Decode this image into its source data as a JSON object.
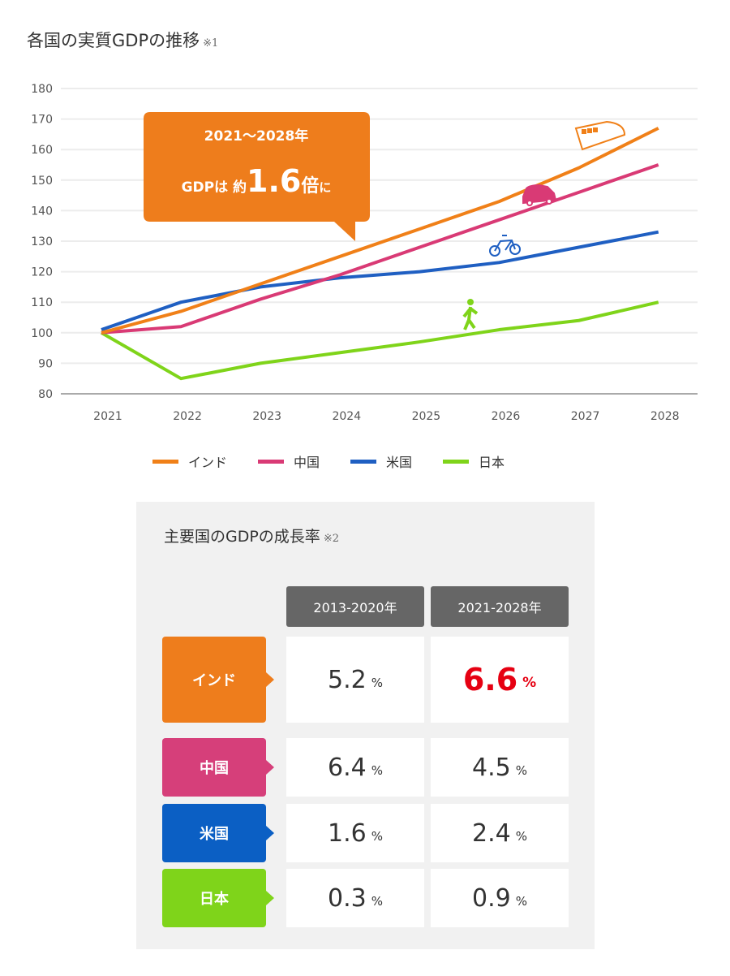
{
  "header": {
    "title": "各国の実質GDPの推移",
    "note": "※1"
  },
  "chart_data": {
    "type": "line",
    "title": "各国の実質GDPの推移",
    "x": [
      "2021",
      "2022",
      "2023",
      "2024",
      "2025",
      "2026",
      "2027",
      "2028"
    ],
    "yticks": [
      80,
      90,
      100,
      110,
      120,
      130,
      140,
      150,
      160,
      170,
      180
    ],
    "ylim": [
      80,
      180
    ],
    "grid": true,
    "legend": "bottom",
    "series": [
      {
        "name": "インド",
        "color": "#f08018",
        "icon": "bullet-train-icon",
        "values": [
          100,
          107,
          116,
          125,
          134,
          143,
          154,
          167
        ]
      },
      {
        "name": "中国",
        "color": "#d93a75",
        "icon": "car-icon",
        "values": [
          100,
          102,
          111,
          119,
          128,
          137,
          146,
          155
        ]
      },
      {
        "name": "米国",
        "color": "#1f5fc2",
        "icon": "bicycle-icon",
        "values": [
          101,
          110,
          115,
          118,
          120,
          123,
          128,
          133
        ]
      },
      {
        "name": "日本",
        "color": "#7fd41a",
        "icon": "walking-person-icon",
        "values": [
          100,
          85,
          90,
          93.5,
          97,
          101,
          104,
          110
        ]
      }
    ],
    "callout": {
      "line1": "2021～2028年",
      "pre": "GDPは 約",
      "big": "1.6",
      "post1": "倍",
      "post2": "に",
      "color": "#ee7d1c"
    }
  },
  "table": {
    "title": "主要国のGDPの成長率",
    "note": "※2",
    "headers": [
      "2013-2020年",
      "2021-2028年"
    ],
    "unit": "%",
    "rows": [
      {
        "country": "インド",
        "color": "#ee7d1c",
        "v1": "5.2",
        "v2": "6.6",
        "highlight": true
      },
      {
        "country": "中国",
        "color": "#d63f7a",
        "v1": "6.4",
        "v2": "4.5"
      },
      {
        "country": "米国",
        "color": "#0b5fc4",
        "v1": "1.6",
        "v2": "2.4"
      },
      {
        "country": "日本",
        "color": "#7fd41a",
        "v1": "0.3",
        "v2": "0.9"
      }
    ]
  }
}
